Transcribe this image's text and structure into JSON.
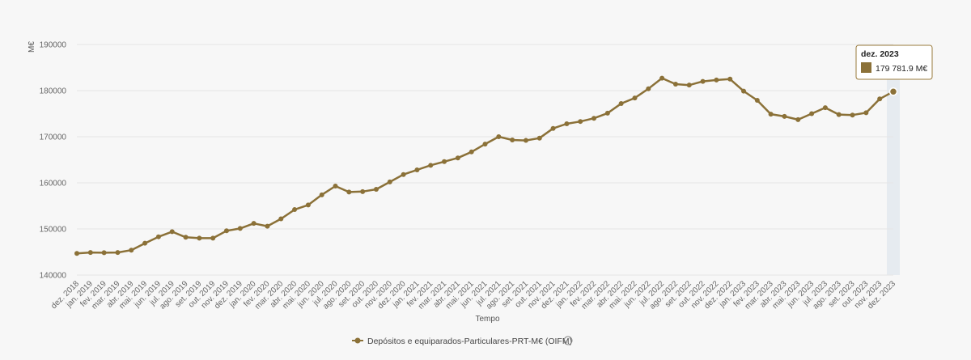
{
  "chart_data": {
    "type": "line",
    "ylabel": "M€",
    "xlabel": "Tempo",
    "ylim": [
      140000,
      190000
    ],
    "yticks": [
      "140000",
      "150000",
      "160000",
      "170000",
      "180000",
      "190000"
    ],
    "ytick_values": [
      140000,
      150000,
      160000,
      170000,
      180000,
      190000
    ],
    "categories": [
      "dez. 2018",
      "jan. 2019",
      "fev. 2019",
      "mar. 2019",
      "abr. 2019",
      "mai. 2019",
      "jun. 2019",
      "jul. 2019",
      "ago. 2019",
      "set. 2019",
      "out. 2019",
      "nov. 2019",
      "dez. 2019",
      "jan. 2020",
      "fev. 2020",
      "mar. 2020",
      "abr. 2020",
      "mai. 2020",
      "jun. 2020",
      "jul. 2020",
      "ago. 2020",
      "set. 2020",
      "out. 2020",
      "nov. 2020",
      "dez. 2020",
      "jan. 2021",
      "fev. 2021",
      "mar. 2021",
      "abr. 2021",
      "mai. 2021",
      "jun. 2021",
      "jul. 2021",
      "ago. 2021",
      "set. 2021",
      "out. 2021",
      "nov. 2021",
      "dez. 2021",
      "jan. 2022",
      "fev. 2022",
      "mar. 2022",
      "abr. 2022",
      "mai. 2022",
      "jun. 2022",
      "jul. 2022",
      "ago. 2022",
      "set. 2022",
      "out. 2022",
      "nov. 2022",
      "dez. 2022",
      "jan. 2023",
      "fev. 2023",
      "mar. 2023",
      "abr. 2023",
      "mai. 2023",
      "jun. 2023",
      "jul. 2023",
      "ago. 2023",
      "set. 2023",
      "out. 2023",
      "nov. 2023",
      "dez. 2023"
    ],
    "series": [
      {
        "name": "Depósitos e equiparados-Particulares-PRT-M€ (OIFM)",
        "color": "#8b7138",
        "values": [
          144700,
          144900,
          144850,
          144900,
          145400,
          146900,
          148300,
          149400,
          148200,
          148000,
          148000,
          149600,
          150100,
          151200,
          150600,
          152200,
          154200,
          155200,
          157400,
          159300,
          158000,
          158100,
          158600,
          160200,
          161800,
          162800,
          163800,
          164600,
          165400,
          166700,
          168400,
          170000,
          169300,
          169200,
          169700,
          171800,
          172800,
          173300,
          174000,
          175100,
          177200,
          178400,
          180400,
          182700,
          181400,
          181200,
          182000,
          182300,
          182500,
          179900,
          177900,
          174900,
          174400,
          173700,
          175000,
          176300,
          174800,
          174700,
          175200,
          178200,
          179781.9
        ]
      }
    ],
    "grid": true,
    "legend_position": "bottom-center",
    "highlighted_index": 60
  },
  "tooltip": {
    "title": "dez. 2023",
    "value": "179 781.9 M€"
  },
  "legend": {
    "label": "Depósitos e equiparados-Particulares-PRT-M€ (OIFM)",
    "info_icon": "info-icon"
  },
  "colors": {
    "highlight_band": "#e6ebf0",
    "tooltip_border": "#9a7b3c"
  }
}
